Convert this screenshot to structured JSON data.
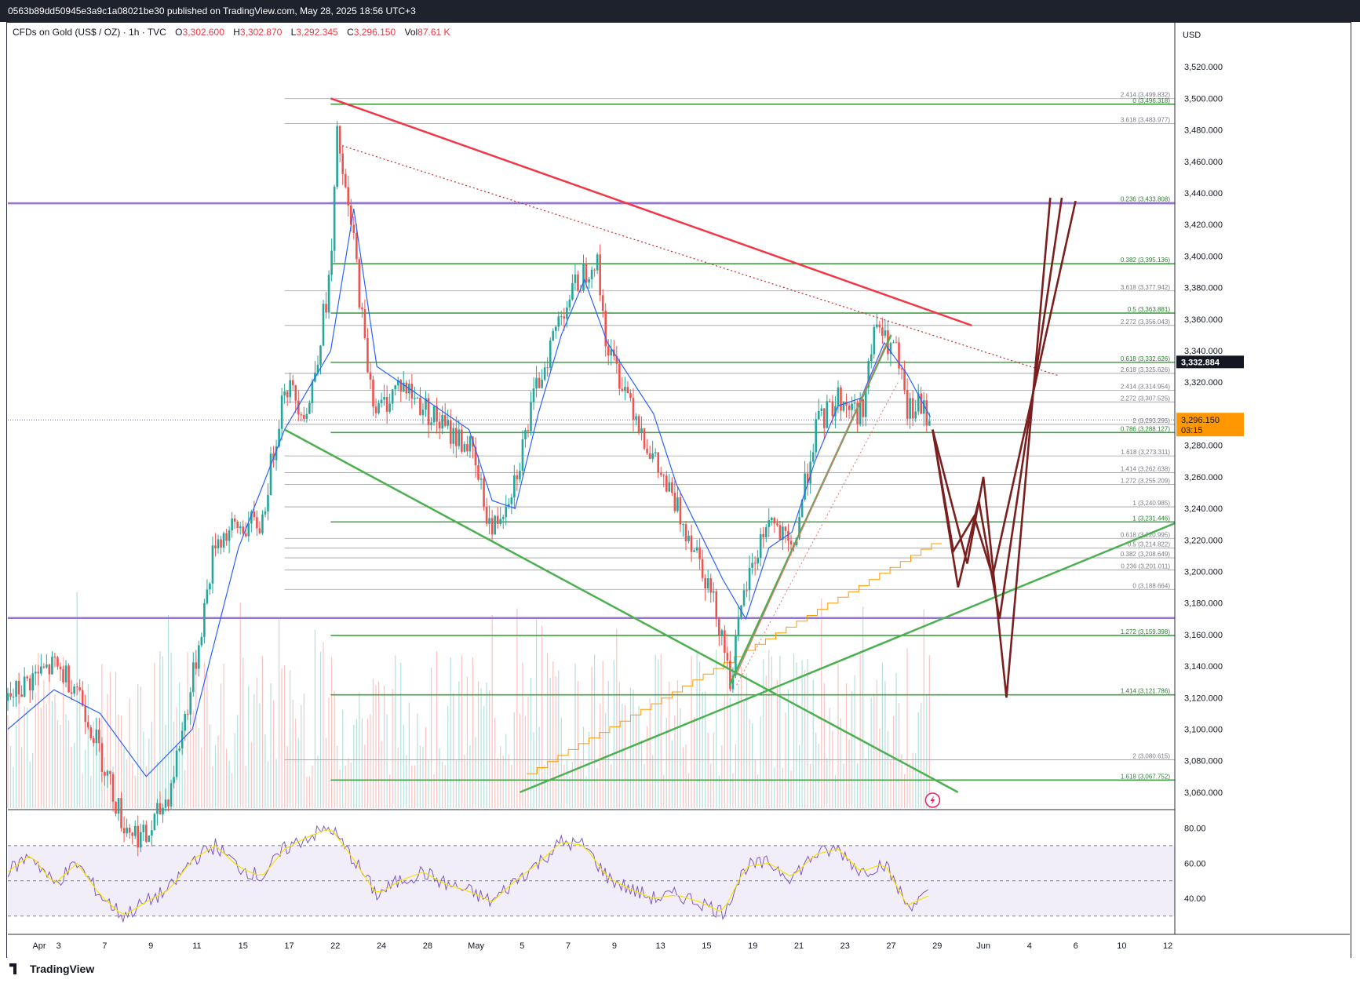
{
  "header": {
    "published": "0563b89dd50945e3a9c1a08021be30 published on TradingView.com, May 28, 2025 18:56 UTC+3"
  },
  "legend": {
    "symbol": "CFDs on Gold (US$ / OZ) · 1h · TVC",
    "open_label": "O",
    "open": "3,302.600",
    "high_label": "H",
    "high": "3,302.870",
    "low_label": "L",
    "low": "3,292.345",
    "close_label": "C",
    "close": "3,296.150",
    "vol_label": "Vol",
    "vol": "87.61 K"
  },
  "price_axis": {
    "currency": "USD",
    "current_price": "3,296.150",
    "countdown": "03:15",
    "marker_price": "3,332.884"
  },
  "rsi_axis": {
    "ticks": [
      "80.00",
      "60.00",
      "40.00"
    ]
  },
  "footer": {
    "brand": "TradingView"
  },
  "colors": {
    "up": "#26a69a",
    "down": "#ef5350",
    "ma": "#2962ff",
    "rsi": "#7e57c2",
    "rsi_ma": "#f5e400",
    "green_line": "#4caf50",
    "red_line": "#f23645",
    "purple_line": "#9575cd",
    "projection": "#7b1e1e",
    "step": "#ff9800"
  },
  "chart_data": {
    "type": "candlestick",
    "ylim": [
      3050,
      3540
    ],
    "y_ticks": [
      3520,
      3500,
      3480,
      3460,
      3440,
      3420,
      3400,
      3380,
      3360,
      3340,
      3320,
      3300,
      3280,
      3260,
      3240,
      3220,
      3200,
      3180,
      3160,
      3140,
      3120,
      3100,
      3080,
      3060
    ],
    "y_tick_labels": [
      "3,520.000",
      "3,500.000",
      "3,480.000",
      "3,460.000",
      "3,440.000",
      "3,420.000",
      "3,400.000",
      "3,380.000",
      "3,360.000",
      "3,340.000",
      "3,320.000",
      "",
      "3,280.000",
      "3,260.000",
      "3,240.000",
      "3,220.000",
      "3,200.000",
      "3,180.000",
      "3,160.000",
      "3,140.000",
      "3,120.000",
      "3,100.000",
      "3,080.000",
      "3,060.000"
    ],
    "x_labels": [
      "Apr",
      "3",
      "7",
      "9",
      "11",
      "15",
      "17",
      "22",
      "24",
      "28",
      "May",
      "5",
      "7",
      "9",
      "13",
      "15",
      "19",
      "21",
      "23",
      "27",
      "29",
      "Jun",
      "4",
      "6",
      "10",
      "12"
    ],
    "x_index": [
      0,
      2.2,
      4.2,
      6.2,
      8.2,
      10.2,
      12.2,
      14.2,
      16.2,
      18.2,
      20.3,
      22.3,
      24.3,
      26.3,
      28.3,
      30.3,
      32.3,
      34.3,
      36.3,
      38.3,
      40.3,
      42.3,
      44.3,
      46.3,
      48.3,
      50.3
    ],
    "price_path": [
      [
        0,
        3118
      ],
      [
        1,
        3132
      ],
      [
        2,
        3140
      ],
      [
        3,
        3128
      ],
      [
        4,
        3085
      ],
      [
        5,
        3040
      ],
      [
        6,
        3030
      ],
      [
        7,
        3060
      ],
      [
        8,
        3130
      ],
      [
        9,
        3220
      ],
      [
        10,
        3228
      ],
      [
        11,
        3230
      ],
      [
        12,
        3320
      ],
      [
        13,
        3300
      ],
      [
        14,
        3390
      ],
      [
        14.3,
        3480
      ],
      [
        14.6,
        3440
      ],
      [
        15,
        3410
      ],
      [
        15.5,
        3340
      ],
      [
        16,
        3300
      ],
      [
        17,
        3320
      ],
      [
        18,
        3305
      ],
      [
        19,
        3290
      ],
      [
        20,
        3280
      ],
      [
        21,
        3225
      ],
      [
        22,
        3260
      ],
      [
        23,
        3320
      ],
      [
        24,
        3365
      ],
      [
        25,
        3390
      ],
      [
        25.5,
        3400
      ],
      [
        26,
        3340
      ],
      [
        27,
        3310
      ],
      [
        28,
        3270
      ],
      [
        29,
        3240
      ],
      [
        30,
        3210
      ],
      [
        31,
        3160
      ],
      [
        31.3,
        3130
      ],
      [
        32,
        3190
      ],
      [
        33,
        3235
      ],
      [
        34,
        3210
      ],
      [
        35,
        3290
      ],
      [
        36,
        3310
      ],
      [
        37,
        3300
      ],
      [
        37.7,
        3360
      ],
      [
        38,
        3345
      ],
      [
        38.5,
        3340
      ],
      [
        39,
        3300
      ],
      [
        39.5,
        3305
      ],
      [
        40,
        3296
      ]
    ],
    "ma_path": [
      [
        0,
        3100
      ],
      [
        2,
        3125
      ],
      [
        4,
        3110
      ],
      [
        6,
        3070
      ],
      [
        8,
        3100
      ],
      [
        10,
        3215
      ],
      [
        12,
        3290
      ],
      [
        14,
        3340
      ],
      [
        15,
        3430
      ],
      [
        16,
        3330
      ],
      [
        18,
        3310
      ],
      [
        20,
        3290
      ],
      [
        21,
        3245
      ],
      [
        22,
        3240
      ],
      [
        23,
        3300
      ],
      [
        24,
        3350
      ],
      [
        25,
        3385
      ],
      [
        26,
        3345
      ],
      [
        28,
        3300
      ],
      [
        29,
        3255
      ],
      [
        30,
        3225
      ],
      [
        31,
        3195
      ],
      [
        32,
        3170
      ],
      [
        33,
        3215
      ],
      [
        34,
        3225
      ],
      [
        35,
        3270
      ],
      [
        36,
        3305
      ],
      [
        37,
        3310
      ],
      [
        38,
        3345
      ],
      [
        39,
        3325
      ],
      [
        40,
        3298
      ]
    ],
    "rsi_path": [
      [
        0,
        55
      ],
      [
        1,
        65
      ],
      [
        2,
        48
      ],
      [
        3,
        60
      ],
      [
        4,
        42
      ],
      [
        5,
        30
      ],
      [
        6,
        38
      ],
      [
        7,
        45
      ],
      [
        8,
        62
      ],
      [
        9,
        70
      ],
      [
        10,
        58
      ],
      [
        11,
        52
      ],
      [
        12,
        68
      ],
      [
        13,
        75
      ],
      [
        14,
        80
      ],
      [
        15,
        62
      ],
      [
        16,
        42
      ],
      [
        17,
        50
      ],
      [
        18,
        55
      ],
      [
        19,
        48
      ],
      [
        20,
        44
      ],
      [
        21,
        38
      ],
      [
        22,
        50
      ],
      [
        23,
        60
      ],
      [
        24,
        72
      ],
      [
        25,
        70
      ],
      [
        26,
        52
      ],
      [
        27,
        45
      ],
      [
        28,
        40
      ],
      [
        29,
        42
      ],
      [
        30,
        38
      ],
      [
        31,
        32
      ],
      [
        32,
        58
      ],
      [
        33,
        60
      ],
      [
        34,
        52
      ],
      [
        35,
        65
      ],
      [
        36,
        68
      ],
      [
        37,
        55
      ],
      [
        38,
        60
      ],
      [
        39,
        36
      ],
      [
        40,
        42
      ]
    ],
    "fib_levels": [
      {
        "label": "2.414 (3,499.832)",
        "price": 3499.832,
        "color": "gray"
      },
      {
        "label": "0 (3,496.318)",
        "price": 3496.318,
        "color": "green"
      },
      {
        "label": "3.618 (3,483.977)",
        "price": 3483.977,
        "color": "gray"
      },
      {
        "label": "0.236 (3,433.808)",
        "price": 3433.808,
        "color": "green"
      },
      {
        "label": "0.382 (3,395.136)",
        "price": 3395.136,
        "color": "green"
      },
      {
        "label": "3.618 (3,377.942)",
        "price": 3377.942,
        "color": "gray"
      },
      {
        "label": "0.5 (3,363.881)",
        "price": 3363.881,
        "color": "green"
      },
      {
        "label": "2.272 (3,356.043)",
        "price": 3356.043,
        "color": "gray"
      },
      {
        "label": "0.618 (3,332.626)",
        "price": 3332.626,
        "color": "green"
      },
      {
        "label": "2.618 (3,325.626)",
        "price": 3325.626,
        "color": "gray"
      },
      {
        "label": "2.414 (3,314.954)",
        "price": 3314.954,
        "color": "gray"
      },
      {
        "label": "2.272 (3,307.525)",
        "price": 3307.525,
        "color": "gray"
      },
      {
        "label": "2 (3,293.295)",
        "price": 3293.295,
        "color": "gray"
      },
      {
        "label": "0.786 (3,288.127)",
        "price": 3288.127,
        "color": "green"
      },
      {
        "label": "1.618 (3,273.311)",
        "price": 3273.311,
        "color": "gray"
      },
      {
        "label": "1.414 (3,262.638)",
        "price": 3262.638,
        "color": "gray"
      },
      {
        "label": "1.272 (3,255.209)",
        "price": 3255.209,
        "color": "gray"
      },
      {
        "label": "1 (3,240.985)",
        "price": 3240.985,
        "color": "gray"
      },
      {
        "label": "1 (3,231.446)",
        "price": 3231.446,
        "color": "green"
      },
      {
        "label": "0.618 (3,220.995)",
        "price": 3220.995,
        "color": "gray"
      },
      {
        "label": "0.5 (3,214.822)",
        "price": 3214.822,
        "color": "gray"
      },
      {
        "label": "0.382 (3,208.649)",
        "price": 3208.649,
        "color": "gray"
      },
      {
        "label": "0.236 (3,201.011)",
        "price": 3201.011,
        "color": "gray"
      },
      {
        "label": "0 (3,188.664)",
        "price": 3188.664,
        "color": "gray"
      },
      {
        "label": "1.272 (3,159.398)",
        "price": 3159.398,
        "color": "green"
      },
      {
        "label": "1.414 (3,121.786)",
        "price": 3121.786,
        "color": "green"
      },
      {
        "label": "2 (3,080.615)",
        "price": 3080.615,
        "color": "gray"
      },
      {
        "label": "1.618 (3,067.752)",
        "price": 3067.752,
        "color": "green"
      }
    ],
    "horizontal_purple": [
      3433.5,
      3170.5
    ],
    "trend_lines": [
      {
        "color": "red",
        "points": [
          [
            14,
            3500
          ],
          [
            41.8,
            3356
          ]
        ]
      },
      {
        "color": "red_dotted",
        "points": [
          [
            14.5,
            3470
          ],
          [
            45.6,
            3324
          ]
        ]
      },
      {
        "color": "green",
        "points": [
          [
            12,
            3290
          ],
          [
            41.2,
            3060
          ]
        ]
      },
      {
        "color": "green",
        "points": [
          [
            22.2,
            3060
          ],
          [
            53,
            3245
          ]
        ]
      },
      {
        "color": "green",
        "points": [
          [
            31.3,
            3128
          ],
          [
            38.3,
            3350
          ]
        ]
      }
    ],
    "projection_waves": [
      [
        [
          40.1,
          3290
        ],
        [
          41.6,
          3205
        ],
        [
          42.3,
          3260
        ],
        [
          43.3,
          3120
        ],
        [
          45.2,
          3437
        ]
      ],
      [
        [
          40.1,
          3290
        ],
        [
          41.2,
          3190
        ],
        [
          42.1,
          3245
        ],
        [
          43.0,
          3170
        ],
        [
          45.7,
          3437
        ]
      ],
      [
        [
          40.1,
          3290
        ],
        [
          41.0,
          3213
        ],
        [
          41.9,
          3235
        ],
        [
          42.7,
          3197
        ],
        [
          46.3,
          3435
        ]
      ]
    ]
  }
}
